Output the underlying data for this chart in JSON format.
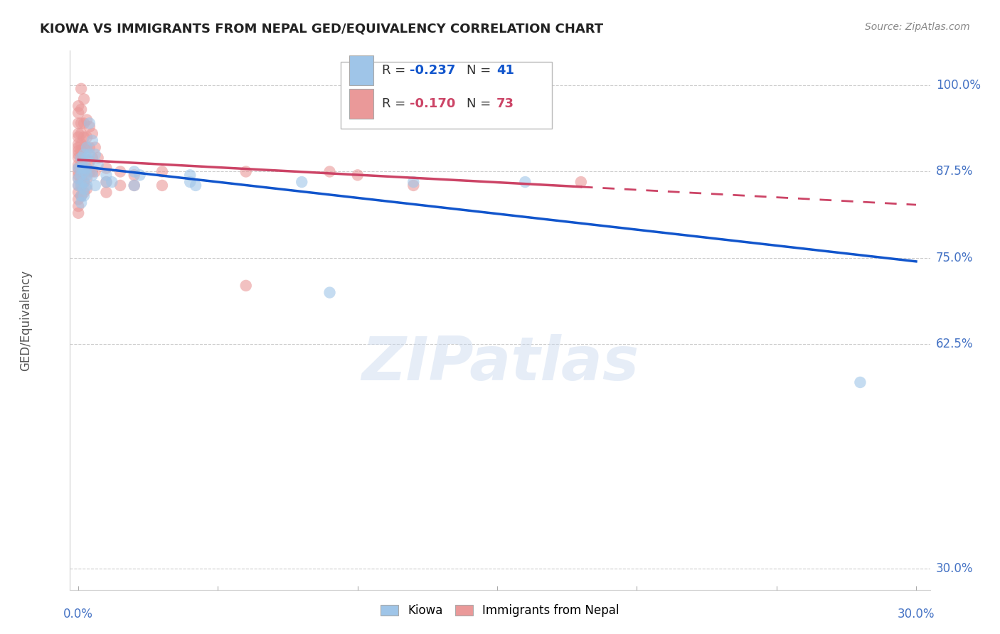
{
  "title": "KIOWA VS IMMIGRANTS FROM NEPAL GED/EQUIVALENCY CORRELATION CHART",
  "source": "Source: ZipAtlas.com",
  "ylabel": "GED/Equivalency",
  "ytick_labels": [
    "100.0%",
    "87.5%",
    "75.0%",
    "62.5%",
    "30.0%"
  ],
  "ytick_values": [
    1.0,
    0.875,
    0.75,
    0.625,
    0.3
  ],
  "xtick_labels": [
    "0.0%",
    "30.0%"
  ],
  "xtick_positions": [
    0.0,
    0.3
  ],
  "xlim": [
    -0.003,
    0.305
  ],
  "ylim": [
    0.27,
    1.05
  ],
  "blue_color": "#9fc5e8",
  "pink_color": "#ea9999",
  "trendline_blue_color": "#1155cc",
  "trendline_pink_color": "#cc4466",
  "watermark": "ZIPatlas",
  "kiowa_points": [
    [
      0.0,
      0.88
    ],
    [
      0.0,
      0.865
    ],
    [
      0.0,
      0.855
    ],
    [
      0.001,
      0.895
    ],
    [
      0.001,
      0.88
    ],
    [
      0.001,
      0.87
    ],
    [
      0.001,
      0.855
    ],
    [
      0.001,
      0.84
    ],
    [
      0.001,
      0.83
    ],
    [
      0.002,
      0.9
    ],
    [
      0.002,
      0.88
    ],
    [
      0.002,
      0.875
    ],
    [
      0.002,
      0.86
    ],
    [
      0.002,
      0.85
    ],
    [
      0.002,
      0.84
    ],
    [
      0.003,
      0.91
    ],
    [
      0.003,
      0.895
    ],
    [
      0.003,
      0.88
    ],
    [
      0.003,
      0.87
    ],
    [
      0.003,
      0.855
    ],
    [
      0.004,
      0.945
    ],
    [
      0.004,
      0.9
    ],
    [
      0.005,
      0.92
    ],
    [
      0.005,
      0.87
    ],
    [
      0.006,
      0.9
    ],
    [
      0.006,
      0.855
    ],
    [
      0.007,
      0.885
    ],
    [
      0.01,
      0.87
    ],
    [
      0.01,
      0.86
    ],
    [
      0.012,
      0.86
    ],
    [
      0.02,
      0.875
    ],
    [
      0.02,
      0.855
    ],
    [
      0.022,
      0.87
    ],
    [
      0.04,
      0.87
    ],
    [
      0.04,
      0.86
    ],
    [
      0.042,
      0.855
    ],
    [
      0.08,
      0.86
    ],
    [
      0.09,
      0.7
    ],
    [
      0.12,
      0.86
    ],
    [
      0.16,
      0.86
    ],
    [
      0.28,
      0.57
    ]
  ],
  "nepal_points": [
    [
      0.0,
      0.97
    ],
    [
      0.0,
      0.96
    ],
    [
      0.0,
      0.945
    ],
    [
      0.0,
      0.93
    ],
    [
      0.0,
      0.925
    ],
    [
      0.0,
      0.915
    ],
    [
      0.0,
      0.91
    ],
    [
      0.0,
      0.905
    ],
    [
      0.0,
      0.9
    ],
    [
      0.0,
      0.895
    ],
    [
      0.0,
      0.885
    ],
    [
      0.0,
      0.88
    ],
    [
      0.0,
      0.875
    ],
    [
      0.0,
      0.87
    ],
    [
      0.0,
      0.865
    ],
    [
      0.0,
      0.855
    ],
    [
      0.0,
      0.845
    ],
    [
      0.0,
      0.835
    ],
    [
      0.0,
      0.825
    ],
    [
      0.0,
      0.815
    ],
    [
      0.001,
      0.995
    ],
    [
      0.001,
      0.965
    ],
    [
      0.001,
      0.945
    ],
    [
      0.001,
      0.93
    ],
    [
      0.001,
      0.915
    ],
    [
      0.001,
      0.905
    ],
    [
      0.001,
      0.895
    ],
    [
      0.001,
      0.885
    ],
    [
      0.001,
      0.875
    ],
    [
      0.001,
      0.865
    ],
    [
      0.001,
      0.855
    ],
    [
      0.001,
      0.84
    ],
    [
      0.002,
      0.98
    ],
    [
      0.002,
      0.945
    ],
    [
      0.002,
      0.925
    ],
    [
      0.002,
      0.91
    ],
    [
      0.002,
      0.895
    ],
    [
      0.002,
      0.875
    ],
    [
      0.002,
      0.86
    ],
    [
      0.002,
      0.845
    ],
    [
      0.003,
      0.95
    ],
    [
      0.003,
      0.925
    ],
    [
      0.003,
      0.91
    ],
    [
      0.003,
      0.88
    ],
    [
      0.003,
      0.865
    ],
    [
      0.003,
      0.85
    ],
    [
      0.004,
      0.94
    ],
    [
      0.004,
      0.91
    ],
    [
      0.004,
      0.89
    ],
    [
      0.004,
      0.875
    ],
    [
      0.005,
      0.93
    ],
    [
      0.005,
      0.895
    ],
    [
      0.005,
      0.875
    ],
    [
      0.006,
      0.91
    ],
    [
      0.006,
      0.875
    ],
    [
      0.007,
      0.895
    ],
    [
      0.01,
      0.88
    ],
    [
      0.01,
      0.86
    ],
    [
      0.01,
      0.845
    ],
    [
      0.015,
      0.875
    ],
    [
      0.015,
      0.855
    ],
    [
      0.02,
      0.87
    ],
    [
      0.02,
      0.855
    ],
    [
      0.03,
      0.875
    ],
    [
      0.03,
      0.855
    ],
    [
      0.06,
      0.875
    ],
    [
      0.06,
      0.71
    ],
    [
      0.09,
      0.875
    ],
    [
      0.1,
      0.87
    ],
    [
      0.12,
      0.855
    ],
    [
      0.18,
      0.86
    ]
  ],
  "blue_trendline_solid": [
    [
      0.0,
      0.883
    ],
    [
      0.3,
      0.745
    ]
  ],
  "pink_trendline_solid": [
    [
      0.0,
      0.892
    ],
    [
      0.18,
      0.853
    ]
  ],
  "pink_trendline_dashed": [
    [
      0.18,
      0.853
    ],
    [
      0.3,
      0.827
    ]
  ]
}
